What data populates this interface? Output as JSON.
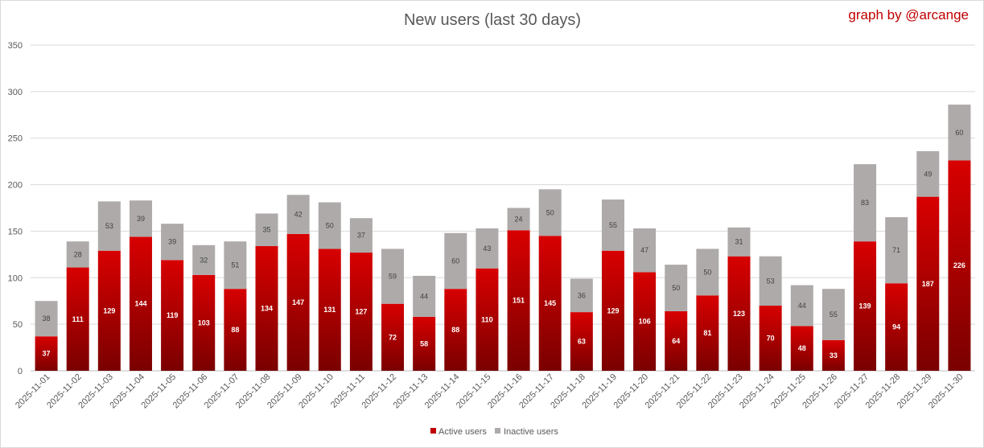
{
  "chart_data": {
    "type": "bar",
    "stacked": true,
    "title": "New users (last 30 days)",
    "credit": "graph by @arcange",
    "xlabel": "",
    "ylabel": "",
    "ylim": [
      0,
      350
    ],
    "yticks": [
      0,
      50,
      100,
      150,
      200,
      250,
      300,
      350
    ],
    "grid": true,
    "legend_position": "bottom",
    "categories": [
      "2025-11-01",
      "2025-11-02",
      "2025-11-03",
      "2025-11-04",
      "2025-11-05",
      "2025-11-06",
      "2025-11-07",
      "2025-11-08",
      "2025-11-09",
      "2025-11-10",
      "2025-11-11",
      "2025-11-12",
      "2025-11-13",
      "2025-11-14",
      "2025-11-15",
      "2025-11-16",
      "2025-11-17",
      "2025-11-18",
      "2025-11-19",
      "2025-11-20",
      "2025-11-21",
      "2025-11-22",
      "2025-11-23",
      "2025-11-24",
      "2025-11-25",
      "2025-11-26",
      "2025-11-27",
      "2025-11-28",
      "2025-11-29",
      "2025-11-30"
    ],
    "series": [
      {
        "name": "Active users",
        "color": "#c00000",
        "label_color": "#ffffff",
        "values": [
          37,
          111,
          129,
          144,
          119,
          103,
          88,
          134,
          147,
          131,
          127,
          72,
          58,
          88,
          110,
          151,
          145,
          63,
          129,
          106,
          64,
          81,
          123,
          70,
          48,
          33,
          139,
          94,
          187,
          226
        ]
      },
      {
        "name": "Inactive users",
        "color": "#aeaaaa",
        "label_color": "#404040",
        "values": [
          38,
          28,
          53,
          39,
          39,
          32,
          51,
          35,
          42,
          50,
          37,
          59,
          44,
          60,
          43,
          24,
          50,
          36,
          55,
          47,
          50,
          50,
          31,
          53,
          44,
          55,
          83,
          71,
          49,
          60
        ]
      }
    ]
  }
}
